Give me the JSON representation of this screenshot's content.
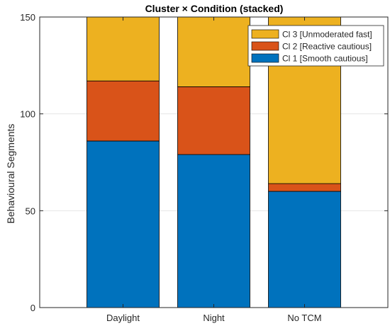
{
  "chart_data": {
    "type": "bar",
    "stacked": true,
    "title": "Cluster × Condition (stacked)",
    "xlabel": "",
    "ylabel": "Behavioural Segments",
    "categories": [
      "Daylight",
      "Night",
      "No TCM"
    ],
    "ylim": [
      0,
      150
    ],
    "yticks": [
      0,
      50,
      100,
      150
    ],
    "grid": true,
    "legend_position": "top-right",
    "series": [
      {
        "name": "Cl 1 [Smooth cautious]",
        "values": [
          86,
          79,
          60
        ],
        "color": "#0072BD"
      },
      {
        "name": "Cl 2 [Reactive cautious]",
        "values": [
          31,
          35,
          4
        ],
        "color": "#D95319"
      },
      {
        "name": "Cl 3 [Unmoderated fast]",
        "values": [
          33,
          36,
          86
        ],
        "color": "#EDB120"
      }
    ]
  }
}
